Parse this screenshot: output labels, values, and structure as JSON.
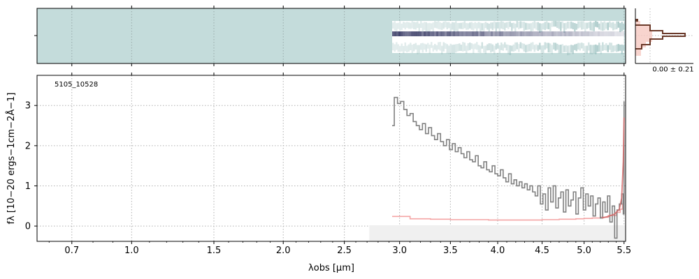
{
  "colors": {
    "spectrum": "#808080",
    "error": "#f4a4a4",
    "model": "#d36b6b",
    "spec2d_bg": "#c4dcdb",
    "spec2d_trace": "#2a2d5a",
    "hist_line": "#6b3a2a",
    "hist_fill": "#f6c9c2",
    "grid": "#b0b0b0"
  },
  "chart_data": [
    {
      "type": "heatmap",
      "panel": "2d-spectrum",
      "xlim_um": [
        0.55,
        5.52
      ],
      "trace_start_um": 2.93,
      "trace_end_um": 5.5
    },
    {
      "type": "bar",
      "panel": "pixel-histogram",
      "label": "0.00 ± 0.21"
    },
    {
      "type": "line",
      "panel": "1d-spectrum",
      "annotation": "5105_10528",
      "xlabel": "λobs [μm]",
      "ylabel": "fλ [10−20 ergs−1cm−2Å−1]",
      "xscale": "sqrt",
      "xlim": [
        0.55,
        5.52
      ],
      "ylim": [
        -0.38,
        3.75
      ],
      "xticks": [
        0.7,
        1.0,
        1.5,
        2.0,
        2.5,
        3.0,
        3.5,
        4.0,
        4.5,
        5.0,
        5.5
      ],
      "xtick_labels": [
        "0.7",
        "1.0",
        "1.5",
        "2.0",
        "2.5",
        "3.0",
        "3.5",
        "4.0",
        "4.5",
        "5.0",
        "5.5"
      ],
      "yticks": [
        0,
        1,
        2,
        3
      ],
      "ytick_labels": [
        "0",
        "1",
        "2",
        "3"
      ],
      "grid": true,
      "series": [
        {
          "x": [
            2.93,
            2.95,
            2.98,
            3.01,
            3.04,
            3.07,
            3.1,
            3.13,
            3.16,
            3.19,
            3.22,
            3.25,
            3.28,
            3.31,
            3.34,
            3.37,
            3.4,
            3.43,
            3.46,
            3.49,
            3.52,
            3.55,
            3.58,
            3.61,
            3.64,
            3.67,
            3.7,
            3.73,
            3.76,
            3.79,
            3.82,
            3.85,
            3.88,
            3.91,
            3.94,
            3.97,
            4.0,
            4.03,
            4.06,
            4.09,
            4.12,
            4.15,
            4.18,
            4.21,
            4.24,
            4.27,
            4.3,
            4.33,
            4.36,
            4.39,
            4.42,
            4.45,
            4.48,
            4.51,
            4.54,
            4.57,
            4.6,
            4.63,
            4.66,
            4.69,
            4.72,
            4.75,
            4.78,
            4.81,
            4.84,
            4.87,
            4.9,
            4.93,
            4.96,
            4.99,
            5.02,
            5.05,
            5.08,
            5.11,
            5.14,
            5.17,
            5.2,
            5.23,
            5.26,
            5.29,
            5.32,
            5.35,
            5.38,
            5.41,
            5.44,
            5.47,
            5.49,
            5.5
          ],
          "y": [
            2.5,
            3.2,
            3.05,
            3.1,
            2.9,
            2.75,
            2.8,
            2.6,
            2.5,
            2.4,
            2.55,
            2.3,
            2.45,
            2.25,
            2.15,
            2.3,
            2.1,
            2.0,
            2.15,
            1.9,
            2.05,
            1.85,
            1.95,
            1.8,
            1.7,
            1.85,
            1.65,
            1.6,
            1.75,
            1.5,
            1.45,
            1.6,
            1.4,
            1.35,
            1.5,
            1.3,
            1.25,
            1.4,
            1.2,
            1.1,
            1.3,
            1.05,
            1.15,
            1.0,
            1.1,
            0.95,
            1.05,
            0.9,
            1.0,
            0.85,
            0.75,
            1.0,
            0.55,
            0.8,
            0.4,
            0.95,
            0.6,
            1.0,
            0.45,
            0.7,
            0.85,
            0.35,
            0.9,
            0.5,
            0.65,
            0.85,
            0.3,
            0.7,
            0.95,
            0.4,
            0.8,
            0.5,
            0.75,
            0.25,
            0.55,
            0.7,
            0.2,
            0.6,
            0.35,
            0.75,
            0.1,
            0.5,
            -0.3,
            0.4,
            0.55,
            0.8,
            0.3,
            3.1
          ]
        },
        {
          "x": [
            2.93,
            3.1,
            3.3,
            3.5,
            3.7,
            3.9,
            4.1,
            4.3,
            4.5,
            4.7,
            4.9,
            5.0,
            5.1,
            5.2,
            5.3,
            5.4,
            5.45,
            5.48,
            5.5
          ],
          "y": [
            0.24,
            0.18,
            0.17,
            0.16,
            0.16,
            0.15,
            0.15,
            0.15,
            0.16,
            0.17,
            0.18,
            0.19,
            0.2,
            0.22,
            0.26,
            0.34,
            0.42,
            0.55,
            0.95
          ]
        },
        {
          "x": [
            5.22,
            5.3,
            5.38,
            5.44,
            5.47,
            5.49,
            5.5
          ],
          "y": [
            0.2,
            0.24,
            0.3,
            0.42,
            0.7,
            1.6,
            2.7
          ]
        }
      ]
    }
  ]
}
